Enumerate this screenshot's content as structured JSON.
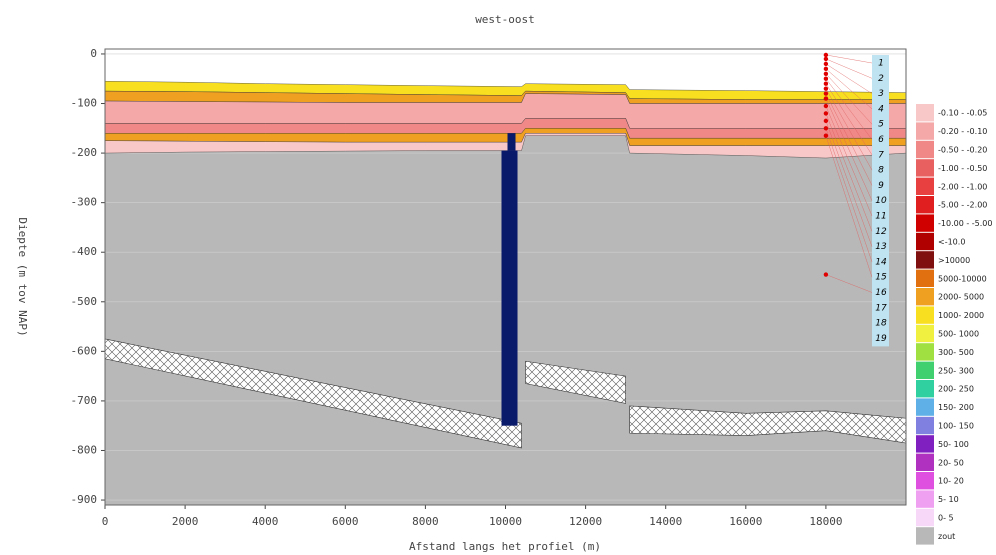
{
  "chart_data": {
    "type": "cross-section",
    "title": "west-oost",
    "x_label": "Afstand langs het profiel (m)",
    "y_label": "Diepte (m tov NAP)",
    "xlim": [
      0,
      20000
    ],
    "ylim": [
      -910,
      10
    ],
    "xticks": [
      0,
      2000,
      4000,
      6000,
      8000,
      10000,
      12000,
      14000,
      16000,
      18000
    ],
    "yticks": [
      0,
      -100,
      -200,
      -300,
      -400,
      -500,
      -600,
      -700,
      -800,
      -900
    ],
    "grid": true,
    "legend": [
      {
        "name": "-0.10 - -0.05",
        "color": "#f8c8c8"
      },
      {
        "name": "-0.20 - -0.10",
        "color": "#f4a8a8"
      },
      {
        "name": "-0.50 - -0.20",
        "color": "#f08888"
      },
      {
        "name": "-1.00 - -0.50",
        "color": "#e86060"
      },
      {
        "name": "-2.00 - -1.00",
        "color": "#e84040"
      },
      {
        "name": "-5.00 - -2.00",
        "color": "#e02020"
      },
      {
        "name": "-10.00 - -5.00",
        "color": "#d00000"
      },
      {
        "name": "<-10.0",
        "color": "#b00000"
      },
      {
        "name": ">10000",
        "color": "#801010"
      },
      {
        "name": "5000-10000",
        "color": "#e07010"
      },
      {
        "name": "2000- 5000",
        "color": "#f0a020"
      },
      {
        "name": "1000- 2000",
        "color": "#f8e020"
      },
      {
        "name": "500- 1000",
        "color": "#f0f040"
      },
      {
        "name": "300- 500",
        "color": "#a0e040"
      },
      {
        "name": "250- 300",
        "color": "#40d070"
      },
      {
        "name": "200- 250",
        "color": "#30d0a0"
      },
      {
        "name": "150- 200",
        "color": "#60b0e8"
      },
      {
        "name": "100- 150",
        "color": "#8080e0"
      },
      {
        "name": "50- 100",
        "color": "#8020c0"
      },
      {
        "name": "20- 50",
        "color": "#b030c0"
      },
      {
        "name": "10- 20",
        "color": "#e050e0"
      },
      {
        "name": "5- 10",
        "color": "#f0a0f0"
      },
      {
        "name": "0- 5",
        "color": "#f8d8f8"
      },
      {
        "name": "zout",
        "color": "#b8b8b8"
      }
    ],
    "layer_x": [
      0,
      2000,
      4000,
      6000,
      8000,
      10400,
      10500,
      13000,
      13100,
      16000,
      18000,
      20000
    ],
    "layers": [
      {
        "class": 11,
        "top": [
          -55,
          -57,
          -60,
          -62,
          -64,
          -66,
          -60,
          -62,
          -72,
          -74,
          -76,
          -78
        ],
        "bottom": [
          -75,
          -76,
          -78,
          -80,
          -82,
          -84,
          -75,
          -78,
          -90,
          -92,
          -92,
          -92
        ]
      },
      {
        "class": 10,
        "top": [
          -75,
          -76,
          -78,
          -80,
          -82,
          -84,
          -75,
          -78,
          -90,
          -92,
          -92,
          -92
        ],
        "bottom": [
          -95,
          -96,
          -97,
          -98,
          -98,
          -98,
          -80,
          -82,
          -100,
          -100,
          -100,
          -100
        ]
      },
      {
        "class": 1,
        "top": [
          -95,
          -96,
          -97,
          -98,
          -98,
          -98,
          -80,
          -82,
          -100,
          -100,
          -100,
          -100
        ],
        "bottom": [
          -140,
          -140,
          -140,
          -140,
          -140,
          -140,
          -130,
          -130,
          -150,
          -150,
          -150,
          -150
        ]
      },
      {
        "class": 2,
        "top": [
          -140,
          -140,
          -140,
          -140,
          -140,
          -140,
          -130,
          -130,
          -150,
          -150,
          -150,
          -150
        ],
        "bottom": [
          -160,
          -160,
          -160,
          -160,
          -160,
          -160,
          -150,
          -150,
          -170,
          -170,
          -170,
          -170
        ]
      },
      {
        "class": 10,
        "top": [
          -160,
          -160,
          -160,
          -160,
          -160,
          -160,
          -150,
          -150,
          -170,
          -170,
          -170,
          -170
        ],
        "bottom": [
          -175,
          -176,
          -177,
          -178,
          -178,
          -178,
          -160,
          -160,
          -185,
          -185,
          -185,
          -185
        ]
      },
      {
        "class": 0,
        "top": [
          -175,
          -176,
          -177,
          -178,
          -178,
          -178,
          -160,
          -160,
          -185,
          -185,
          -185,
          -185
        ],
        "bottom": [
          -200,
          -198,
          -197,
          -196,
          -195,
          -195,
          -165,
          -165,
          -200,
          -205,
          -210,
          -200
        ]
      }
    ],
    "hatched": [
      {
        "x": [
          0,
          10400
        ],
        "top": [
          -575,
          -745
        ],
        "bottom": [
          -615,
          -795
        ]
      },
      {
        "x": [
          10500,
          13000
        ],
        "top": [
          -620,
          -650
        ],
        "bottom": [
          -665,
          -705
        ]
      },
      {
        "x": [
          13100,
          16000,
          18000,
          20000
        ],
        "top": [
          -710,
          -725,
          -720,
          -735
        ],
        "bottom": [
          -765,
          -770,
          -760,
          -785
        ]
      }
    ],
    "well": {
      "x": [
        9900,
        10300
      ],
      "top": -195,
      "bottom": -750,
      "color": "#0a1a6a"
    },
    "well_top": {
      "x": [
        10050,
        10250
      ],
      "top": -160
    },
    "points": {
      "x": 18000,
      "color": "#e00000",
      "depths": [
        -2,
        -10,
        -20,
        -30,
        -40,
        -50,
        -60,
        -70,
        -80,
        -90,
        -105,
        -120,
        -135,
        -150,
        -165,
        -445
      ]
    },
    "layer_labels": [
      "1",
      "2",
      "3",
      "4",
      "5",
      "6",
      "7",
      "8",
      "9",
      "10",
      "11",
      "12",
      "13",
      "14",
      "15",
      "16",
      "17",
      "18",
      "19"
    ]
  }
}
